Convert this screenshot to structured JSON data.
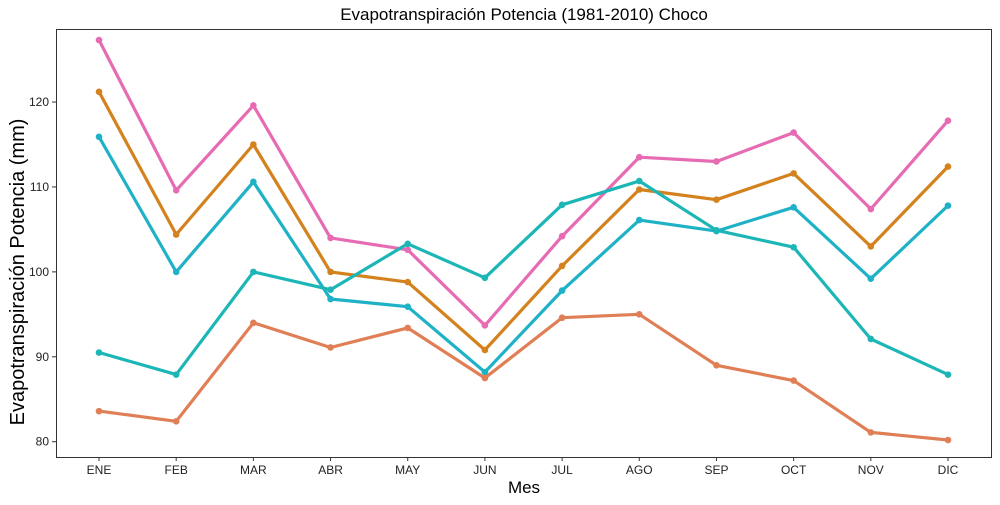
{
  "chart_data": {
    "type": "line",
    "title": "Evapotranspiración Potencia (1981-2010)  Choco",
    "xlabel": "Mes",
    "ylabel": "Evapotranspiración Potencia  (mm)",
    "categories": [
      "ENE",
      "FEB",
      "MAR",
      "ABR",
      "MAY",
      "JUN",
      "JUL",
      "AGO",
      "SEP",
      "OCT",
      "NOV",
      "DIC"
    ],
    "yticks": [
      80,
      90,
      100,
      110,
      120
    ],
    "ylim": [
      78.2,
      128.6
    ],
    "grid": false,
    "legend": "none",
    "series": [
      {
        "color": "#e76bb3",
        "values": [
          127.3,
          109.6,
          119.6,
          104.0,
          102.6,
          93.7,
          104.2,
          113.5,
          113.0,
          116.4,
          107.4,
          117.8
        ]
      },
      {
        "color": "#d4821e",
        "values": [
          121.2,
          104.4,
          115.0,
          100.0,
          98.8,
          90.8,
          100.7,
          109.7,
          108.5,
          111.6,
          103.0,
          112.4
        ]
      },
      {
        "color": "#1fb2c7",
        "values": [
          115.9,
          100.0,
          110.6,
          96.8,
          95.9,
          88.2,
          97.8,
          106.1,
          104.8,
          107.6,
          99.2,
          107.8
        ]
      },
      {
        "color": "#1cb6b6",
        "values": [
          90.5,
          87.9,
          100.0,
          97.9,
          103.3,
          99.3,
          107.9,
          110.7,
          104.9,
          102.9,
          92.1,
          87.9
        ]
      },
      {
        "color": "#e07f56",
        "values": [
          83.6,
          82.4,
          94.0,
          91.1,
          93.4,
          87.5,
          94.6,
          95.0,
          89.0,
          87.2,
          81.1,
          80.2
        ]
      }
    ]
  }
}
